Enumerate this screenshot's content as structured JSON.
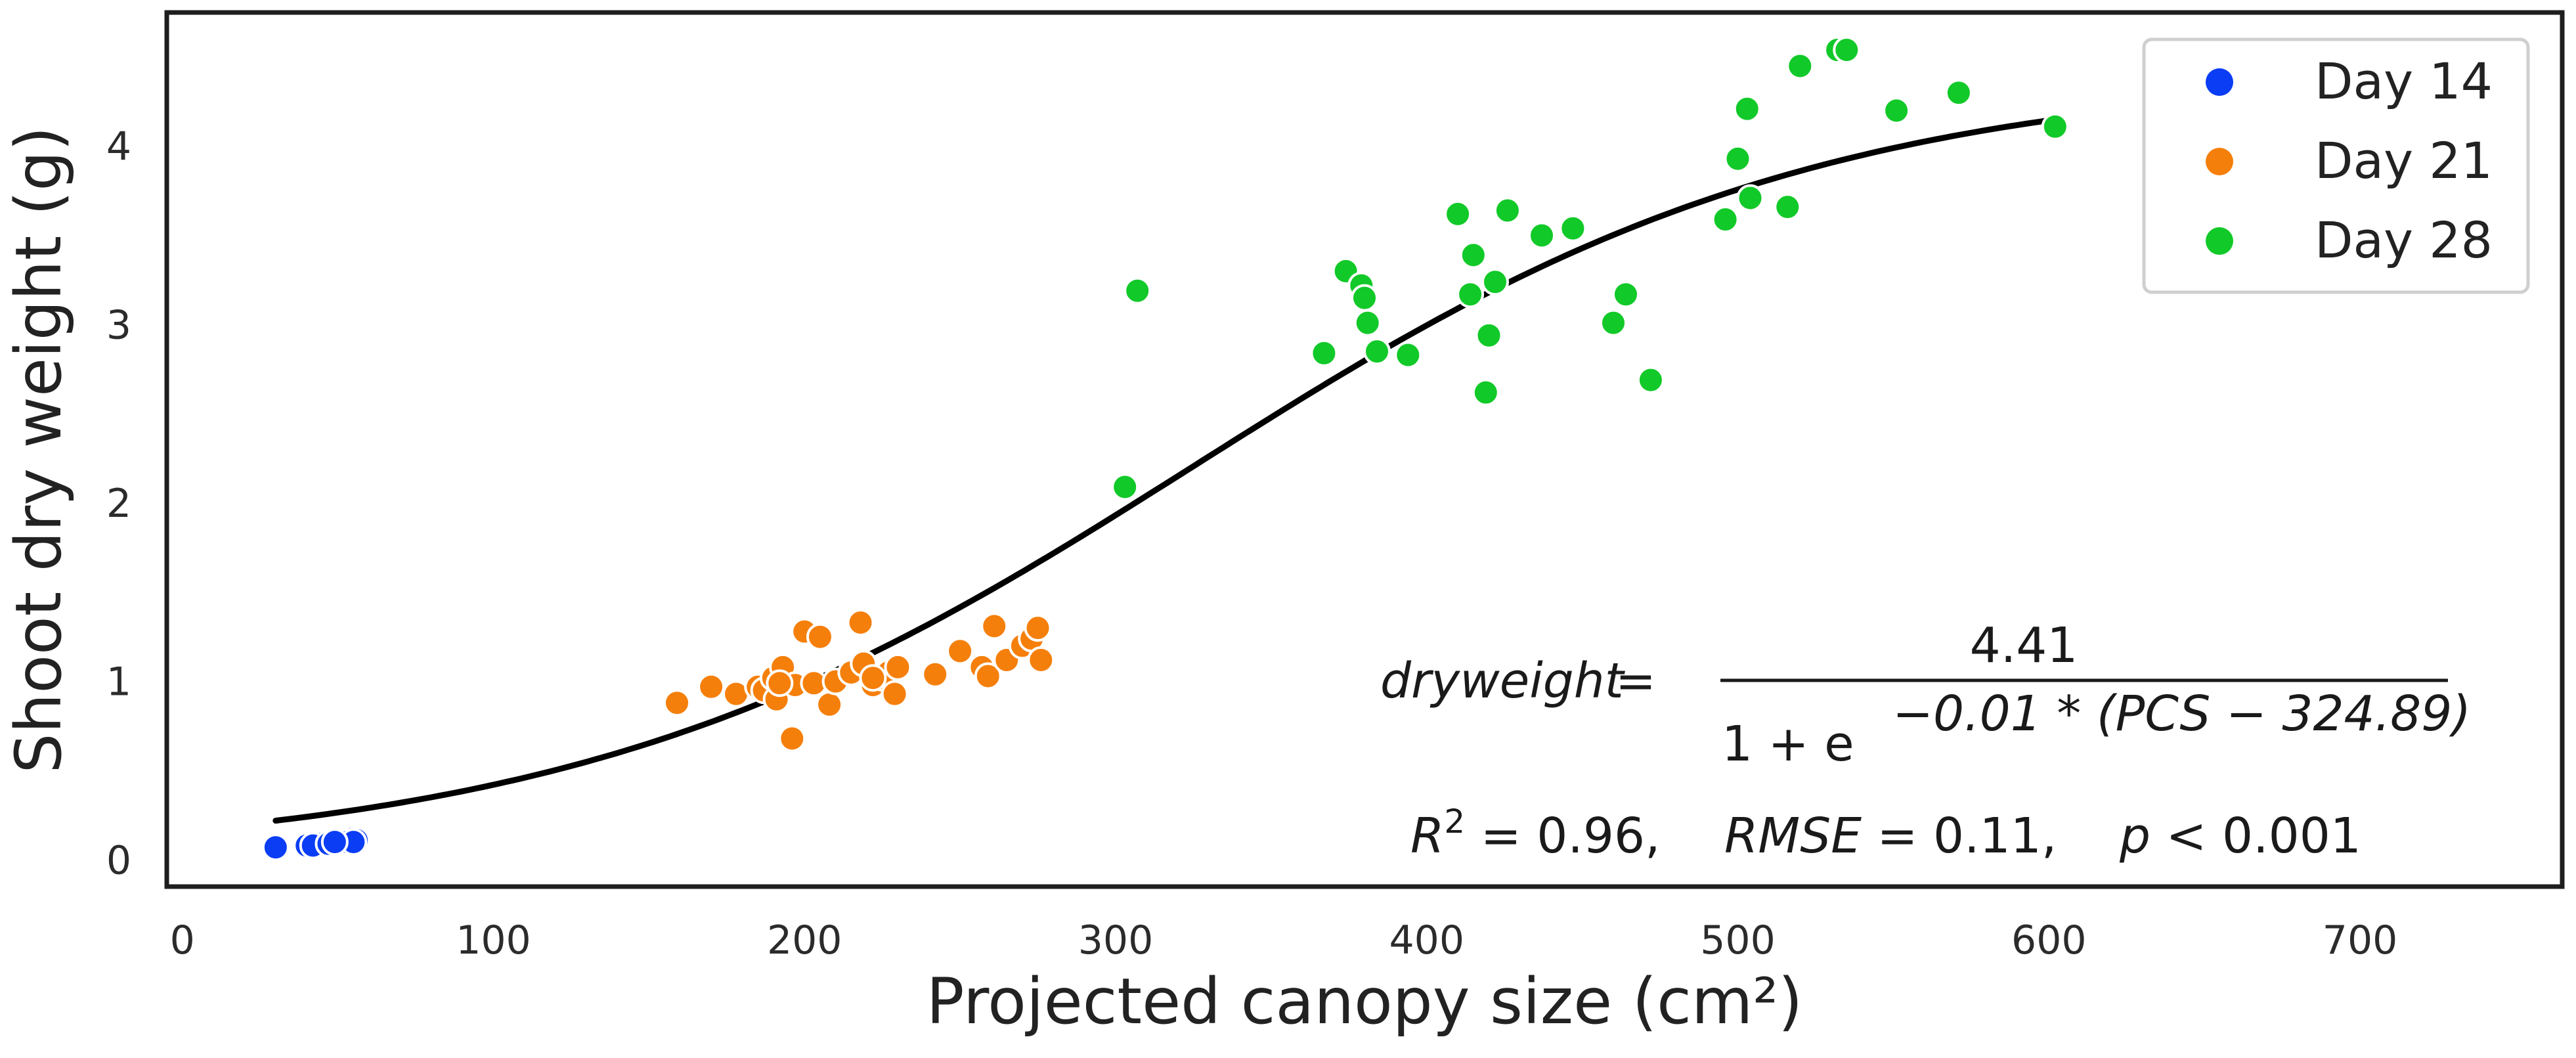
{
  "chart_data": {
    "type": "scatter",
    "xlabel": "Projected canopy size (cm²)",
    "ylabel": "Shoot dry weight (g)",
    "xlim": [
      -5,
      765
    ],
    "ylim": [
      -0.15,
      4.75
    ],
    "x_ticks": [
      0,
      100,
      200,
      300,
      400,
      500,
      600,
      700
    ],
    "y_ticks": [
      0,
      1,
      2,
      3,
      4
    ],
    "grid": false,
    "legend": {
      "position": "top-right",
      "entries": [
        "Day 14",
        "Day 21",
        "Day 28"
      ]
    },
    "series": [
      {
        "name": "Day 14",
        "color": "#0b3df5",
        "points": [
          [
            30,
            0.07
          ],
          [
            40,
            0.08
          ],
          [
            45,
            0.09
          ],
          [
            48,
            0.1
          ],
          [
            50,
            0.11
          ],
          [
            52,
            0.11
          ],
          [
            54,
            0.12
          ],
          [
            55,
            0.12
          ],
          [
            56,
            0.11
          ],
          [
            42,
            0.08
          ],
          [
            47,
            0.09
          ],
          [
            51,
            0.1
          ],
          [
            53,
            0.1
          ],
          [
            55,
            0.1
          ],
          [
            49,
            0.1
          ]
        ]
      },
      {
        "name": "Day 21",
        "color": "#f57f0b",
        "points": [
          [
            159,
            0.88
          ],
          [
            170,
            0.97
          ],
          [
            178,
            0.93
          ],
          [
            185,
            0.97
          ],
          [
            187,
            0.95
          ],
          [
            190,
            1.02
          ],
          [
            191,
            0.9
          ],
          [
            193,
            1.08
          ],
          [
            196,
            0.68
          ],
          [
            197,
            0.98
          ],
          [
            200,
            1.28
          ],
          [
            203,
            0.99
          ],
          [
            205,
            1.25
          ],
          [
            208,
            0.87
          ],
          [
            210,
            1.0
          ],
          [
            215,
            1.05
          ],
          [
            218,
            1.33
          ],
          [
            219,
            1.1
          ],
          [
            222,
            0.98
          ],
          [
            225,
            1.02
          ],
          [
            227,
            1.05
          ],
          [
            229,
            0.93
          ],
          [
            230,
            1.08
          ],
          [
            242,
            1.04
          ],
          [
            250,
            1.17
          ],
          [
            257,
            1.08
          ],
          [
            259,
            1.03
          ],
          [
            261,
            1.31
          ],
          [
            265,
            1.12
          ],
          [
            270,
            1.2
          ],
          [
            273,
            1.24
          ],
          [
            275,
            1.3
          ],
          [
            276,
            1.12
          ],
          [
            222,
            1.02
          ],
          [
            192,
            0.99
          ]
        ]
      },
      {
        "name": "Day 28",
        "color": "#11c928",
        "points": [
          [
            303,
            2.09
          ],
          [
            307,
            3.19
          ],
          [
            367,
            2.84
          ],
          [
            374,
            3.3
          ],
          [
            379,
            3.22
          ],
          [
            380,
            3.15
          ],
          [
            381,
            3.01
          ],
          [
            384,
            2.85
          ],
          [
            394,
            2.83
          ],
          [
            410,
            3.62
          ],
          [
            414,
            3.17
          ],
          [
            415,
            3.39
          ],
          [
            419,
            2.62
          ],
          [
            420,
            2.94
          ],
          [
            422,
            3.24
          ],
          [
            426,
            3.64
          ],
          [
            437,
            3.5
          ],
          [
            447,
            3.54
          ],
          [
            460,
            3.01
          ],
          [
            464,
            3.17
          ],
          [
            472,
            2.69
          ],
          [
            496,
            3.59
          ],
          [
            500,
            3.93
          ],
          [
            503,
            4.21
          ],
          [
            504,
            3.71
          ],
          [
            516,
            3.66
          ],
          [
            520,
            4.45
          ],
          [
            532,
            4.54
          ],
          [
            535,
            4.54
          ],
          [
            551,
            4.2
          ],
          [
            571,
            4.3
          ],
          [
            602,
            4.11
          ]
        ]
      }
    ],
    "fit": {
      "name": "logistic fit",
      "color": "#000000",
      "L": 4.41,
      "k": 0.01,
      "x0": 324.89,
      "x_range": [
        30,
        602
      ]
    }
  },
  "annotation": {
    "eq_lhs": "dryweight",
    "eq_equals": "=",
    "eq_numerator": "4.41",
    "eq_den_prefix": "1 + e",
    "eq_exponent": "−0.01 * (PCS − 324.89)",
    "stats_r": "R",
    "stats_r_sup": "2",
    "stats_r_val": " = 0.96,",
    "stats_rmse_label": "RMSE",
    "stats_rmse_val": " = 0.11,",
    "stats_p_label": "p",
    "stats_p_val": " < 0.001"
  }
}
